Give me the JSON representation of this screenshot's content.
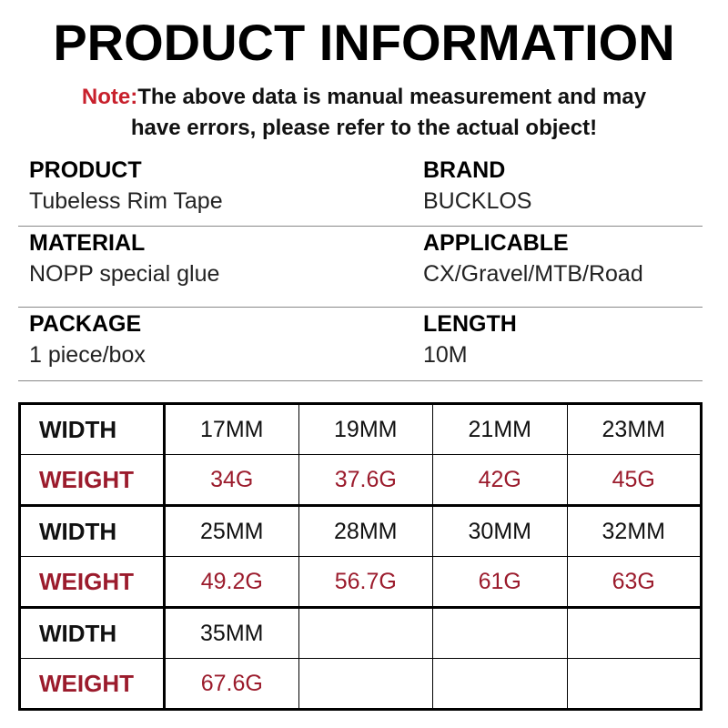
{
  "title": "PRODUCT INFORMATION",
  "note": {
    "label": "Note:",
    "line1": "The above data is manual measurement and may",
    "line2": "have errors, please refer to the actual object!"
  },
  "info": [
    [
      {
        "h": "PRODUCT",
        "v": "Tubeless Rim Tape"
      },
      {
        "h": "BRAND",
        "v": "BUCKLOS"
      }
    ],
    [
      {
        "h": "MATERIAL",
        "v": "NOPP special glue"
      },
      {
        "h": "APPLICABLE",
        "v": "CX/Gravel/MTB/Road"
      }
    ],
    [
      {
        "h": "PACKAGE",
        "v": "1 piece/box"
      },
      {
        "h": "LENGTH",
        "v": "10M"
      }
    ]
  ],
  "table": {
    "width_label": "WIDTH",
    "weight_label": "WEIGHT",
    "groups": [
      {
        "widths": [
          "17MM",
          "19MM",
          "21MM",
          "23MM"
        ],
        "weights": [
          "34G",
          "37.6G",
          "42G",
          "45G"
        ]
      },
      {
        "widths": [
          "25MM",
          "28MM",
          "30MM",
          "32MM"
        ],
        "weights": [
          "49.2G",
          "56.7G",
          "61G",
          "63G"
        ]
      },
      {
        "widths": [
          "35MM",
          "",
          "",
          ""
        ],
        "weights": [
          "67.6G",
          "",
          "",
          ""
        ]
      }
    ]
  },
  "colors": {
    "accent": "#c8202c",
    "weight": "#9b1b2c"
  }
}
